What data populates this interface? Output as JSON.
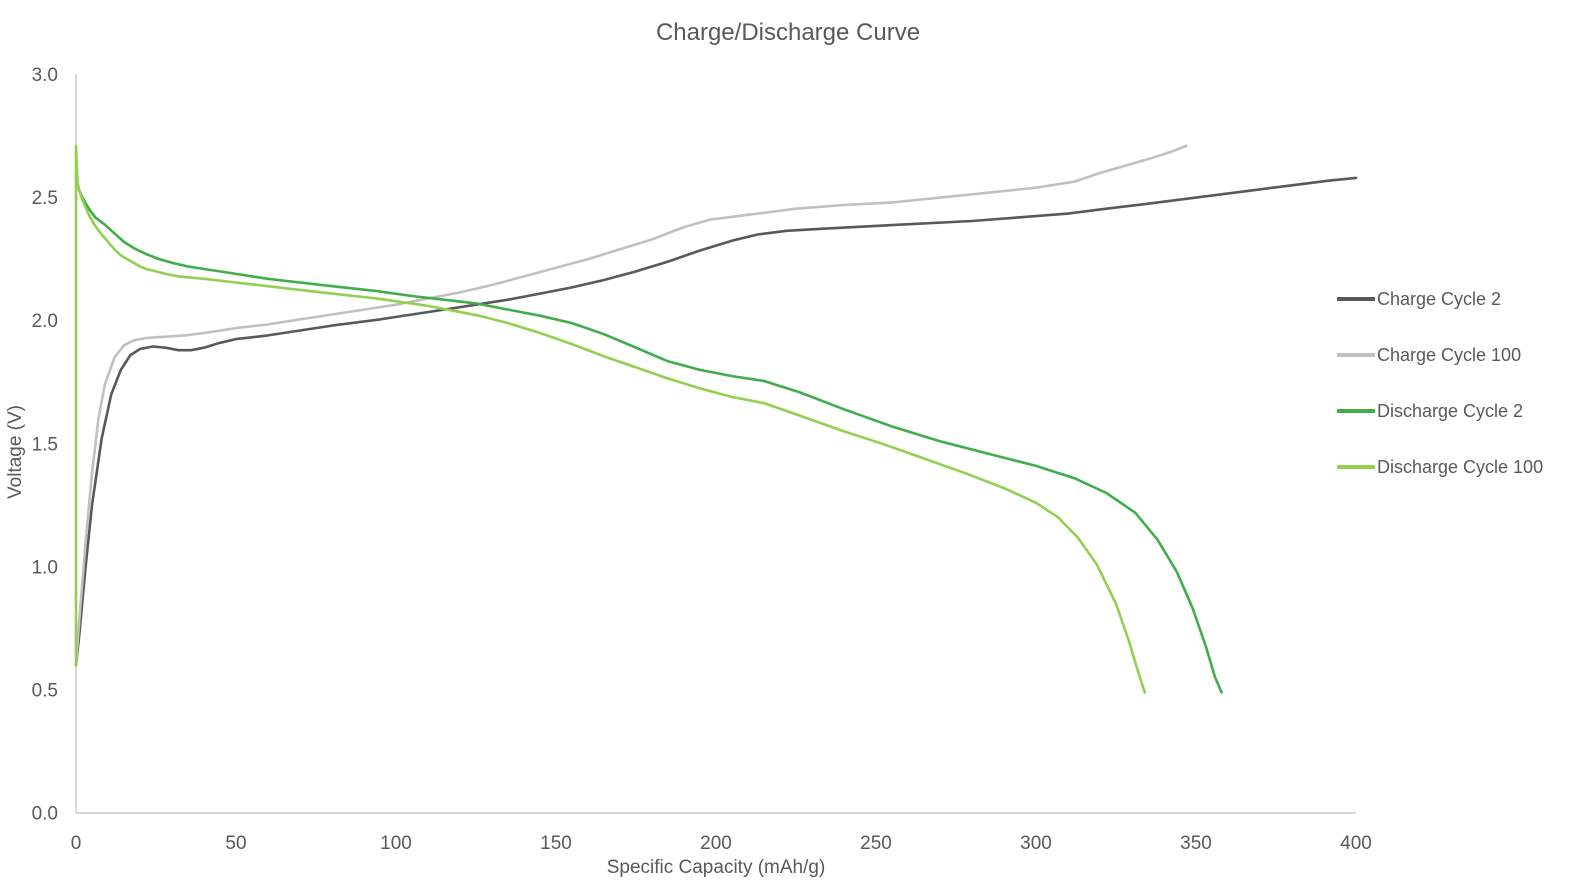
{
  "chart_data": {
    "type": "line",
    "title": "Charge/Discharge Curve",
    "xlabel": "Specific Capacity (mAh/g)",
    "ylabel": "Voltage (V)",
    "xlim": [
      0,
      400
    ],
    "ylim": [
      0.0,
      3.0
    ],
    "x_ticks": [
      0,
      50,
      100,
      150,
      200,
      250,
      300,
      350,
      400
    ],
    "y_ticks": [
      0.0,
      0.5,
      1.0,
      1.5,
      2.0,
      2.5,
      3.0
    ],
    "grid": false,
    "legend_position": "right",
    "colors": {
      "text": "#595959",
      "axis": "#c9c9c9",
      "charge_cycle_2": "#595959",
      "charge_cycle_100": "#c0c0c0",
      "discharge_cycle_2": "#3fae49",
      "discharge_cycle_100": "#92d050"
    },
    "series": [
      {
        "name": "Charge Cycle 2",
        "color": "#595959",
        "points": [
          [
            0,
            0.6
          ],
          [
            1,
            0.72
          ],
          [
            3,
            1.0
          ],
          [
            5,
            1.25
          ],
          [
            8,
            1.52
          ],
          [
            11,
            1.7
          ],
          [
            14,
            1.8
          ],
          [
            17,
            1.86
          ],
          [
            20,
            1.885
          ],
          [
            24,
            1.895
          ],
          [
            28,
            1.89
          ],
          [
            32,
            1.88
          ],
          [
            36,
            1.88
          ],
          [
            40,
            1.89
          ],
          [
            45,
            1.91
          ],
          [
            50,
            1.925
          ],
          [
            60,
            1.94
          ],
          [
            70,
            1.96
          ],
          [
            80,
            1.98
          ],
          [
            95,
            2.005
          ],
          [
            105,
            2.025
          ],
          [
            115,
            2.045
          ],
          [
            125,
            2.065
          ],
          [
            135,
            2.085
          ],
          [
            145,
            2.11
          ],
          [
            155,
            2.135
          ],
          [
            165,
            2.165
          ],
          [
            175,
            2.2
          ],
          [
            185,
            2.24
          ],
          [
            195,
            2.285
          ],
          [
            205,
            2.325
          ],
          [
            213,
            2.35
          ],
          [
            222,
            2.365
          ],
          [
            235,
            2.375
          ],
          [
            250,
            2.385
          ],
          [
            265,
            2.395
          ],
          [
            280,
            2.405
          ],
          [
            295,
            2.42
          ],
          [
            310,
            2.435
          ],
          [
            322,
            2.455
          ],
          [
            335,
            2.475
          ],
          [
            350,
            2.5
          ],
          [
            365,
            2.525
          ],
          [
            380,
            2.55
          ],
          [
            392,
            2.57
          ],
          [
            400,
            2.58
          ]
        ]
      },
      {
        "name": "Charge Cycle 100",
        "color": "#c0c0c0",
        "points": [
          [
            0,
            0.6
          ],
          [
            1,
            0.78
          ],
          [
            3,
            1.1
          ],
          [
            5,
            1.38
          ],
          [
            7,
            1.6
          ],
          [
            9,
            1.74
          ],
          [
            12,
            1.85
          ],
          [
            15,
            1.9
          ],
          [
            18,
            1.92
          ],
          [
            22,
            1.93
          ],
          [
            28,
            1.935
          ],
          [
            34,
            1.94
          ],
          [
            40,
            1.95
          ],
          [
            50,
            1.97
          ],
          [
            60,
            1.985
          ],
          [
            70,
            2.005
          ],
          [
            80,
            2.025
          ],
          [
            90,
            2.045
          ],
          [
            100,
            2.065
          ],
          [
            110,
            2.09
          ],
          [
            120,
            2.115
          ],
          [
            130,
            2.145
          ],
          [
            140,
            2.18
          ],
          [
            150,
            2.215
          ],
          [
            160,
            2.25
          ],
          [
            170,
            2.29
          ],
          [
            180,
            2.33
          ],
          [
            190,
            2.38
          ],
          [
            198,
            2.41
          ],
          [
            210,
            2.43
          ],
          [
            225,
            2.455
          ],
          [
            240,
            2.47
          ],
          [
            255,
            2.48
          ],
          [
            270,
            2.5
          ],
          [
            285,
            2.52
          ],
          [
            300,
            2.54
          ],
          [
            312,
            2.565
          ],
          [
            320,
            2.6
          ],
          [
            328,
            2.63
          ],
          [
            336,
            2.66
          ],
          [
            342,
            2.685
          ],
          [
            347,
            2.71
          ]
        ]
      },
      {
        "name": "Discharge Cycle 2",
        "color": "#3fae49",
        "points": [
          [
            0,
            2.57
          ],
          [
            1,
            2.53
          ],
          [
            2,
            2.5
          ],
          [
            4,
            2.455
          ],
          [
            6,
            2.42
          ],
          [
            9,
            2.39
          ],
          [
            12,
            2.355
          ],
          [
            15,
            2.32
          ],
          [
            18,
            2.295
          ],
          [
            22,
            2.27
          ],
          [
            26,
            2.25
          ],
          [
            30,
            2.235
          ],
          [
            35,
            2.22
          ],
          [
            40,
            2.21
          ],
          [
            45,
            2.2
          ],
          [
            50,
            2.19
          ],
          [
            60,
            2.17
          ],
          [
            70,
            2.155
          ],
          [
            80,
            2.14
          ],
          [
            94,
            2.12
          ],
          [
            105,
            2.1
          ],
          [
            115,
            2.085
          ],
          [
            125,
            2.07
          ],
          [
            135,
            2.045
          ],
          [
            145,
            2.02
          ],
          [
            155,
            1.99
          ],
          [
            165,
            1.945
          ],
          [
            175,
            1.89
          ],
          [
            185,
            1.835
          ],
          [
            195,
            1.8
          ],
          [
            205,
            1.775
          ],
          [
            215,
            1.755
          ],
          [
            226,
            1.71
          ],
          [
            240,
            1.64
          ],
          [
            255,
            1.57
          ],
          [
            270,
            1.51
          ],
          [
            285,
            1.46
          ],
          [
            300,
            1.41
          ],
          [
            312,
            1.36
          ],
          [
            322,
            1.3
          ],
          [
            331,
            1.22
          ],
          [
            338,
            1.11
          ],
          [
            344,
            0.98
          ],
          [
            349,
            0.83
          ],
          [
            353,
            0.68
          ],
          [
            356,
            0.55
          ],
          [
            358,
            0.49
          ]
        ]
      },
      {
        "name": "Discharge Cycle 100",
        "color": "#92d050",
        "points": [
          [
            0,
            0.6
          ],
          [
            0,
            2.71
          ],
          [
            0.5,
            2.56
          ],
          [
            1,
            2.53
          ],
          [
            2,
            2.49
          ],
          [
            4,
            2.43
          ],
          [
            6,
            2.385
          ],
          [
            8,
            2.35
          ],
          [
            10,
            2.32
          ],
          [
            12,
            2.29
          ],
          [
            14,
            2.265
          ],
          [
            16,
            2.25
          ],
          [
            18,
            2.235
          ],
          [
            20,
            2.22
          ],
          [
            22,
            2.21
          ],
          [
            25,
            2.2
          ],
          [
            28,
            2.19
          ],
          [
            32,
            2.18
          ],
          [
            40,
            2.17
          ],
          [
            50,
            2.155
          ],
          [
            60,
            2.14
          ],
          [
            70,
            2.125
          ],
          [
            80,
            2.11
          ],
          [
            94,
            2.09
          ],
          [
            102,
            2.075
          ],
          [
            110,
            2.06
          ],
          [
            118,
            2.04
          ],
          [
            126,
            2.02
          ],
          [
            135,
            1.99
          ],
          [
            145,
            1.95
          ],
          [
            155,
            1.905
          ],
          [
            165,
            1.855
          ],
          [
            175,
            1.81
          ],
          [
            185,
            1.765
          ],
          [
            195,
            1.725
          ],
          [
            205,
            1.69
          ],
          [
            215,
            1.665
          ],
          [
            226,
            1.615
          ],
          [
            240,
            1.55
          ],
          [
            252,
            1.5
          ],
          [
            265,
            1.44
          ],
          [
            278,
            1.38
          ],
          [
            290,
            1.32
          ],
          [
            300,
            1.26
          ],
          [
            307,
            1.2
          ],
          [
            313,
            1.12
          ],
          [
            319,
            1.01
          ],
          [
            325,
            0.85
          ],
          [
            329,
            0.7
          ],
          [
            332,
            0.57
          ],
          [
            334,
            0.49
          ]
        ]
      }
    ]
  }
}
